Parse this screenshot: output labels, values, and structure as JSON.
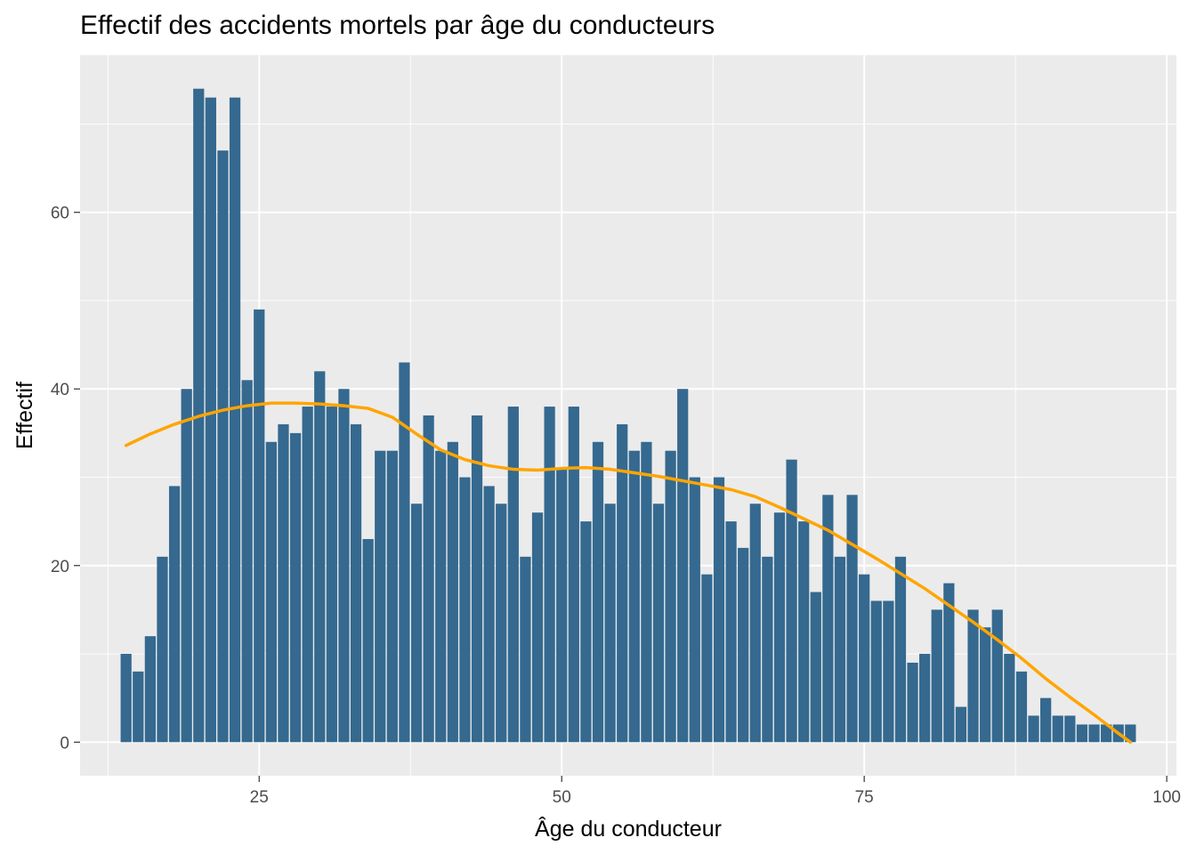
{
  "chart_data": {
    "type": "bar",
    "title": "Effectif des accidents mortels par âge du conducteurs",
    "xlabel": "Âge du conducteur",
    "ylabel": "Effectif",
    "xlim": [
      10.2,
      100.8
    ],
    "ylim": [
      -3.8,
      77.8
    ],
    "xticks": [
      25,
      50,
      75,
      100
    ],
    "yticks": [
      0,
      20,
      40,
      60
    ],
    "grid": true,
    "legend": "none",
    "colors": {
      "bars": "#35698F",
      "smooth": "#FFA500",
      "panel": "#EBEBEB",
      "grid": "#FFFFFF"
    },
    "x": [
      14,
      15,
      16,
      17,
      18,
      19,
      20,
      21,
      22,
      23,
      24,
      25,
      26,
      27,
      28,
      29,
      30,
      31,
      32,
      33,
      34,
      35,
      36,
      37,
      38,
      39,
      40,
      41,
      42,
      43,
      44,
      45,
      46,
      47,
      48,
      49,
      50,
      51,
      52,
      53,
      54,
      55,
      56,
      57,
      58,
      59,
      60,
      61,
      62,
      63,
      64,
      65,
      66,
      67,
      68,
      69,
      70,
      71,
      72,
      73,
      74,
      75,
      76,
      77,
      78,
      79,
      80,
      81,
      82,
      83,
      84,
      85,
      86,
      87,
      88,
      89,
      90,
      91,
      92,
      93,
      94,
      95,
      96,
      97
    ],
    "values": [
      10,
      8,
      12,
      21,
      29,
      40,
      74,
      73,
      67,
      73,
      41,
      49,
      34,
      36,
      35,
      38,
      42,
      38,
      40,
      36,
      23,
      33,
      33,
      43,
      27,
      37,
      33,
      34,
      30,
      37,
      29,
      27,
      38,
      21,
      26,
      38,
      31,
      38,
      25,
      34,
      27,
      36,
      33,
      34,
      27,
      33,
      40,
      30,
      19,
      30,
      25,
      22,
      27,
      21,
      26,
      32,
      25,
      17,
      28,
      21,
      28,
      19,
      16,
      16,
      21,
      9,
      10,
      15,
      18,
      4,
      15,
      13,
      15,
      10,
      8,
      3,
      5,
      3,
      3,
      2,
      2,
      2,
      2,
      2
    ],
    "smooth": {
      "name": "",
      "x": [
        14,
        16,
        18,
        20,
        22,
        24,
        26,
        28,
        30,
        32,
        34,
        36,
        38,
        40,
        42,
        44,
        46,
        48,
        50,
        52,
        54,
        56,
        58,
        60,
        62,
        64,
        66,
        68,
        70,
        72,
        74,
        76,
        78,
        80,
        82,
        84,
        86,
        88,
        90,
        92,
        94,
        96,
        97
      ],
      "y": [
        33.6,
        34.9,
        36.0,
        36.9,
        37.6,
        38.1,
        38.4,
        38.4,
        38.3,
        38.1,
        37.8,
        36.8,
        34.9,
        33.1,
        32.0,
        31.3,
        30.9,
        30.8,
        31.0,
        31.1,
        30.9,
        30.5,
        30.1,
        29.6,
        29.1,
        28.6,
        27.8,
        26.6,
        25.3,
        24.0,
        22.4,
        20.8,
        19.1,
        17.4,
        15.5,
        13.6,
        11.6,
        9.5,
        7.2,
        5.1,
        3.1,
        1.0,
        0.0
      ]
    }
  }
}
